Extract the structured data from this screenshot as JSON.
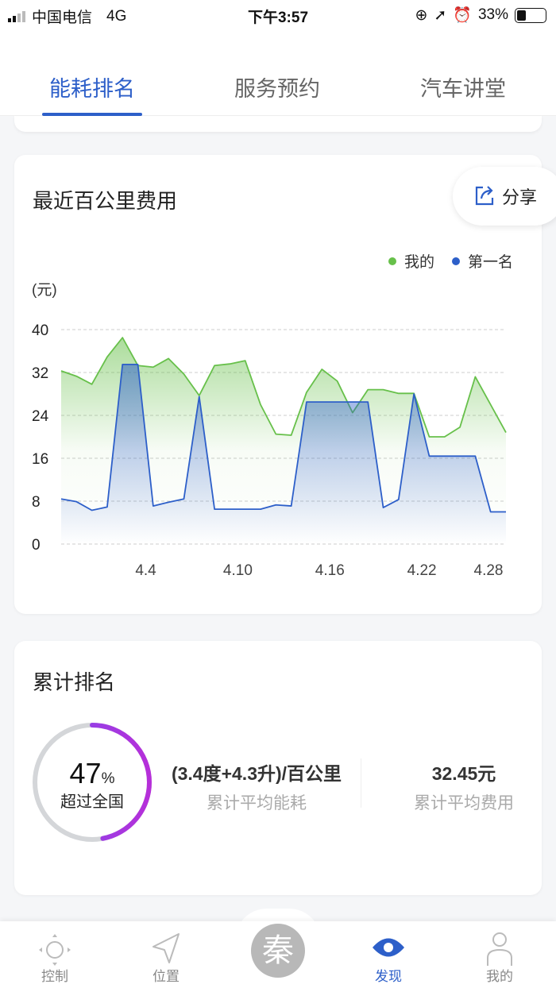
{
  "status_bar": {
    "carrier": "中国电信",
    "network": "4G",
    "time": "下午3:57",
    "battery": "33%"
  },
  "tabs": [
    {
      "label": "能耗排名",
      "active": true
    },
    {
      "label": "服务预约",
      "active": false
    },
    {
      "label": "汽车讲堂",
      "active": false
    }
  ],
  "chart_card": {
    "title": "最近百公里费用",
    "share_label": "分享",
    "unit": "(元)"
  },
  "chart_data": {
    "type": "area",
    "ylabel": "(元)",
    "ylim": [
      0,
      40
    ],
    "yticks": [
      0,
      8,
      16,
      24,
      32,
      40
    ],
    "xtick_labels": [
      "4.4",
      "4.10",
      "4.16",
      "4.22",
      "4.28"
    ],
    "grid": true,
    "legend_position": "top-right",
    "x": [
      "3.30",
      "3.31",
      "4.1",
      "4.2",
      "4.3",
      "4.4",
      "4.5",
      "4.6",
      "4.7",
      "4.8",
      "4.9",
      "4.10",
      "4.11",
      "4.12",
      "4.13",
      "4.14",
      "4.15",
      "4.16",
      "4.17",
      "4.18",
      "4.19",
      "4.20",
      "4.21",
      "4.22",
      "4.23",
      "4.24",
      "4.25",
      "4.26",
      "4.27",
      "4.28"
    ],
    "series": [
      {
        "name": "我的",
        "color": "#67c04a",
        "values": [
          32.3,
          31.3,
          29.8,
          34.9,
          38.5,
          33.3,
          33,
          34.6,
          31.7,
          27.7,
          33.3,
          33.6,
          34.2,
          26,
          20.5,
          20.3,
          28.3,
          32.6,
          30.4,
          24.5,
          28.8,
          28.8,
          28.1,
          28.1,
          20,
          20,
          21.8,
          31.2,
          26,
          20.8
        ]
      },
      {
        "name": "第一名",
        "color": "#2d5fc9",
        "values": [
          8.4,
          7.9,
          6.3,
          6.9,
          33.5,
          33.5,
          7.1,
          7.8,
          8.4,
          27.5,
          6.5,
          6.5,
          6.5,
          6.5,
          7.3,
          7.1,
          26.5,
          26.5,
          26.5,
          26.5,
          26.5,
          6.8,
          8.3,
          28,
          16.4,
          16.4,
          16.4,
          16.4,
          6,
          6
        ]
      }
    ]
  },
  "ranking_card": {
    "title": "累计排名",
    "percent": 47,
    "percent_value": "47",
    "percent_sign": "%",
    "percent_label": "超过全国",
    "ring_colors": [
      "#7b4cf0",
      "#b62fd9"
    ],
    "avg_energy_value": "(3.4度+4.3升)/百公里",
    "avg_energy_label": "累计平均能耗",
    "avg_cost_value": "32.45元",
    "avg_cost_label": "累计平均费用"
  },
  "nav": [
    {
      "label": "控制",
      "icon": "joystick-icon"
    },
    {
      "label": "位置",
      "icon": "location-arrow-icon"
    },
    {
      "label": "秦",
      "icon": "brand-logo"
    },
    {
      "label": "发现",
      "icon": "eye-icon",
      "active": true
    },
    {
      "label": "我的",
      "icon": "user-icon"
    }
  ]
}
